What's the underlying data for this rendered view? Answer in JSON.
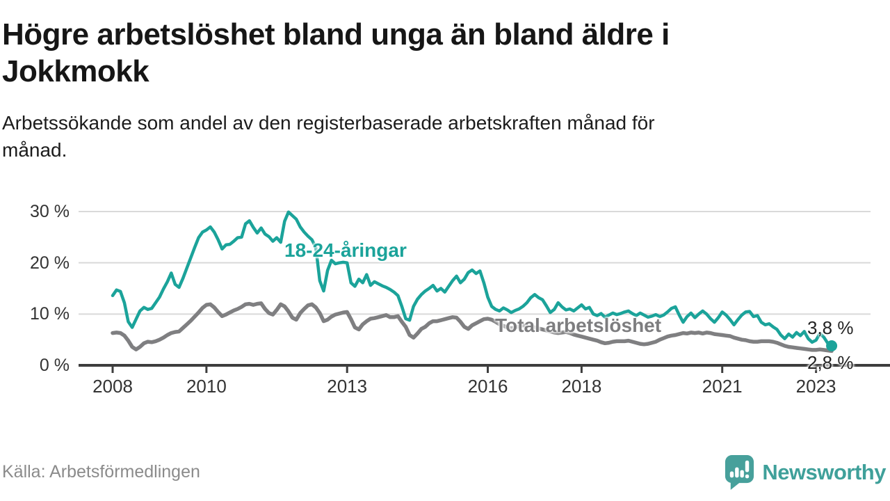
{
  "header": {
    "title_line1": "Högre arbetslöshet bland unga än bland äldre i",
    "title_line2": "Jokkmokk",
    "subtitle_line1": "Arbetssökande som andel av den registerbaserade arbetskraften månad för",
    "subtitle_line2": "månad."
  },
  "annotations": {
    "young_label": "18-24-åringar",
    "total_label": "Total arbetslöshet",
    "young_end_value": "3,8 %",
    "total_end_value": "2,8 %"
  },
  "footer": {
    "source": "Källa: Arbetsförmedlingen",
    "brand": "Newsworthy"
  },
  "colors": {
    "young_line": "#1BA39A",
    "total_line": "#7F7F81",
    "axis": "#3D3D3D",
    "grid": "#D9D9D9",
    "end_label": "#222222",
    "brand_teal": "#3FA09A",
    "logo_bubble": "#47A09B"
  },
  "chart_data": {
    "type": "line",
    "title": "Högre arbetslöshet bland unga än bland äldre i Jokkmokk",
    "subtitle": "Arbetssökande som andel av den registerbaserade arbetskraften månad för månad.",
    "unit": "%",
    "frequency": "monthly",
    "start": "2008-01",
    "end": "2023-05",
    "ylim": [
      0,
      31
    ],
    "y_ticks": [
      0,
      10,
      20,
      30
    ],
    "y_tick_labels": [
      "0 %",
      "10 %",
      "20 %",
      "30 %"
    ],
    "x_tick_years": [
      2008,
      2010,
      2013,
      2016,
      2018,
      2021,
      2023
    ],
    "x_tick_labels": [
      "2008",
      "2010",
      "2013",
      "2016",
      "2018",
      "2021",
      "2023"
    ],
    "grid": "horizontal",
    "legend_position": "inline-labels",
    "series": [
      {
        "name": "18-24-åringar",
        "color": "#1BA39A",
        "end_label": "3,8 %",
        "values": [
          13.6,
          14.7,
          14.4,
          12.2,
          8.5,
          7.4,
          9.0,
          10.6,
          11.3,
          10.9,
          11.1,
          12.2,
          13.3,
          14.9,
          16.3,
          18.0,
          15.8,
          15.2,
          17.0,
          19.0,
          21.0,
          23.0,
          24.9,
          26.0,
          26.4,
          27.0,
          26.0,
          24.5,
          22.7,
          23.5,
          23.6,
          24.2,
          24.9,
          25.0,
          27.6,
          28.2,
          26.9,
          25.8,
          26.8,
          25.6,
          25.1,
          24.2,
          24.9,
          24.0,
          28.1,
          29.9,
          29.2,
          28.5,
          27.0,
          26.0,
          25.2,
          24.5,
          23.0,
          16.5,
          14.5,
          18.5,
          20.5,
          19.8,
          20.0,
          20.1,
          20.0,
          16.1,
          15.4,
          16.8,
          16.1,
          17.7,
          15.6,
          16.3,
          15.9,
          15.5,
          15.2,
          14.8,
          14.3,
          13.6,
          11.5,
          9.1,
          8.8,
          11.5,
          12.9,
          13.8,
          14.5,
          15.0,
          15.6,
          14.5,
          15.0,
          14.3,
          15.4,
          16.5,
          17.4,
          16.1,
          16.8,
          18.1,
          18.6,
          17.9,
          18.4,
          16.1,
          13.3,
          11.5,
          10.9,
          10.6,
          11.2,
          10.8,
          10.3,
          10.7,
          11.0,
          11.5,
          12.2,
          13.2,
          13.8,
          13.2,
          12.8,
          11.6,
          10.3,
          10.9,
          12.2,
          11.4,
          10.8,
          11.0,
          10.6,
          11.2,
          11.8,
          11.0,
          11.3,
          10.0,
          9.7,
          10.1,
          9.4,
          9.8,
          10.2,
          9.9,
          10.1,
          10.4,
          10.6,
          10.1,
          9.7,
          10.2,
          9.8,
          9.4,
          9.6,
          9.9,
          9.5,
          9.8,
          10.4,
          11.1,
          11.4,
          9.8,
          8.4,
          9.5,
          10.2,
          9.3,
          10.0,
          10.6,
          10.0,
          9.1,
          8.4,
          9.3,
          10.4,
          9.8,
          8.9,
          7.9,
          8.9,
          9.8,
          10.4,
          10.5,
          9.5,
          9.7,
          8.4,
          7.9,
          8.1,
          7.5,
          7.0,
          5.9,
          5.2,
          6.1,
          5.5,
          6.4,
          5.8,
          6.6,
          5.2,
          4.5,
          4.9,
          6.2,
          5.5,
          4.3,
          3.8
        ]
      },
      {
        "name": "Total arbetslöshet",
        "color": "#7F7F81",
        "end_label": "2,8 %",
        "values": [
          6.3,
          6.4,
          6.3,
          5.8,
          4.8,
          3.6,
          3.1,
          3.6,
          4.3,
          4.6,
          4.5,
          4.7,
          5.0,
          5.4,
          5.9,
          6.3,
          6.5,
          6.6,
          7.3,
          8.0,
          8.7,
          9.5,
          10.3,
          11.2,
          11.8,
          11.9,
          11.3,
          10.4,
          9.6,
          9.9,
          10.3,
          10.7,
          11.0,
          11.4,
          11.9,
          12.0,
          11.8,
          12.0,
          12.1,
          11.0,
          10.2,
          9.9,
          10.8,
          11.9,
          11.5,
          10.5,
          9.3,
          8.9,
          10.2,
          11.0,
          11.7,
          11.9,
          11.3,
          10.2,
          8.6,
          8.9,
          9.5,
          9.9,
          10.1,
          10.3,
          10.4,
          9.0,
          7.4,
          7.0,
          8.0,
          8.6,
          9.1,
          9.2,
          9.4,
          9.6,
          9.8,
          9.4,
          9.4,
          9.6,
          8.5,
          7.5,
          5.9,
          5.4,
          6.2,
          7.1,
          7.5,
          8.2,
          8.6,
          8.6,
          8.8,
          9.0,
          9.2,
          9.4,
          9.3,
          8.5,
          7.5,
          7.1,
          7.8,
          8.2,
          8.6,
          9.0,
          9.1,
          8.9,
          8.5,
          8.0,
          7.7,
          7.4,
          7.2,
          7.4,
          7.6,
          7.8,
          7.7,
          7.5,
          7.4,
          7.2,
          7.0,
          6.8,
          6.6,
          6.4,
          6.3,
          6.4,
          6.5,
          6.3,
          6.0,
          5.8,
          5.6,
          5.4,
          5.2,
          5.0,
          4.8,
          4.5,
          4.3,
          4.4,
          4.6,
          4.7,
          4.7,
          4.7,
          4.8,
          4.6,
          4.4,
          4.2,
          4.1,
          4.2,
          4.4,
          4.6,
          5.0,
          5.3,
          5.6,
          5.8,
          5.9,
          6.1,
          6.3,
          6.2,
          6.4,
          6.3,
          6.4,
          6.2,
          6.4,
          6.3,
          6.1,
          6.0,
          5.9,
          5.8,
          5.7,
          5.4,
          5.2,
          5.0,
          4.9,
          4.7,
          4.6,
          4.6,
          4.7,
          4.7,
          4.7,
          4.6,
          4.4,
          4.1,
          3.8,
          3.6,
          3.5,
          3.4,
          3.3,
          3.2,
          3.1,
          3.0,
          3.0,
          3.1,
          3.0,
          2.9,
          2.8
        ]
      }
    ]
  }
}
